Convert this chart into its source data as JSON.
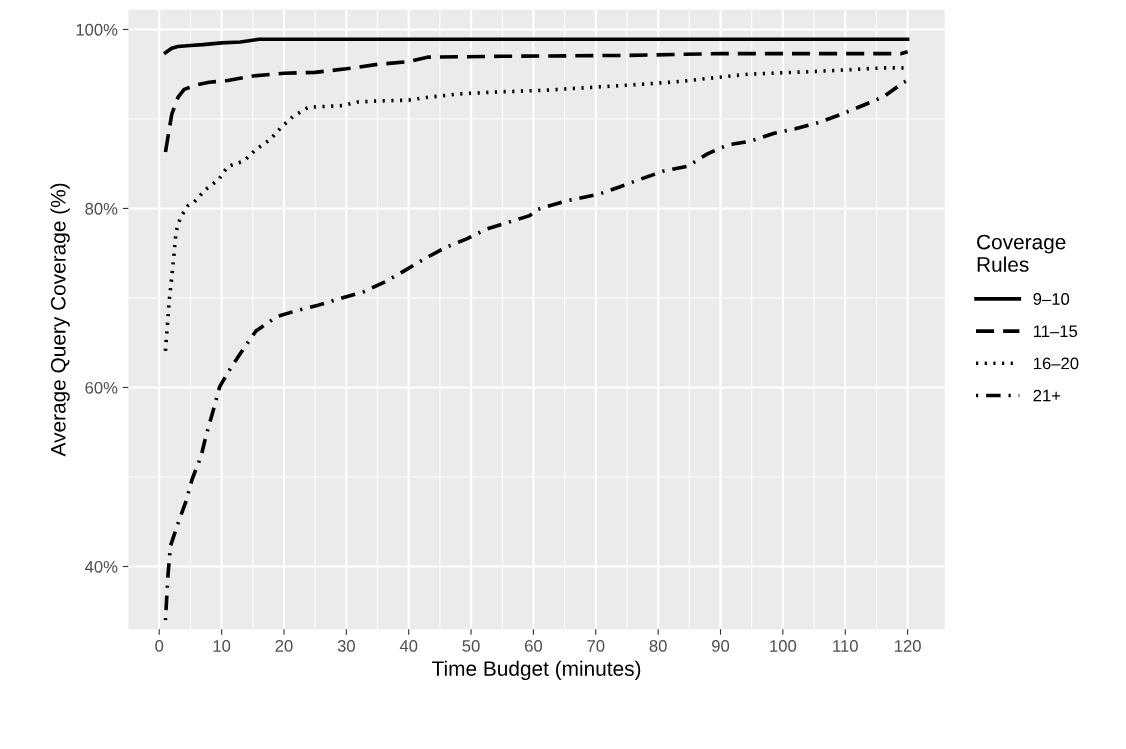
{
  "chart_data": {
    "type": "line",
    "xlabel": "Time Budget (minutes)",
    "ylabel": "Average Query Coverage (%)",
    "legend_title": "Coverage\nRules",
    "legend": "right",
    "grid": true,
    "marker": "none",
    "xlim": [
      -4.95,
      125.95
    ],
    "xticks": [
      0,
      10,
      20,
      30,
      40,
      50,
      60,
      70,
      80,
      90,
      100,
      110,
      120
    ],
    "ylim": [
      33.0,
      102.2
    ],
    "yticks": [
      {
        "value": 40,
        "label": "40%"
      },
      {
        "value": 60,
        "label": "60%"
      },
      {
        "value": 80,
        "label": "80%"
      },
      {
        "value": 100,
        "label": "100%"
      }
    ],
    "series": [
      {
        "name": "9–10",
        "color": "#000000",
        "line_style": "solid",
        "x": [
          1,
          2,
          3,
          5,
          7,
          10,
          13,
          16,
          120
        ],
        "values": [
          97.4,
          97.9,
          98.1,
          98.2,
          98.3,
          98.5,
          98.6,
          98.9,
          98.9
        ]
      },
      {
        "name": "11–15",
        "color": "#000000",
        "line_style": "dashed",
        "x": [
          1,
          2,
          3,
          4,
          6,
          8,
          11,
          15,
          20,
          25,
          30,
          35,
          40,
          43,
          55,
          75,
          90,
          119,
          120
        ],
        "values": [
          86.3,
          90.5,
          92.4,
          93.3,
          93.8,
          94.1,
          94.3,
          94.8,
          95.1,
          95.2,
          95.6,
          96.1,
          96.4,
          96.9,
          97.0,
          97.1,
          97.3,
          97.3,
          97.5
        ]
      },
      {
        "name": "16–20",
        "color": "#000000",
        "line_style": "dotted",
        "x": [
          1,
          1.6,
          2.2,
          2.7,
          3.4,
          4.6,
          5.6,
          7.4,
          9.5,
          11,
          13.6,
          15.5,
          17.8,
          19.6,
          21.5,
          23.9,
          26.6,
          29.5,
          31.9,
          34.8,
          40,
          42.8,
          48.2,
          53.7,
          61.7,
          78,
          83.7,
          89,
          94.4,
          105,
          110.7,
          116,
          120
        ],
        "values": [
          64.1,
          69.7,
          73.6,
          77.4,
          79.0,
          80.3,
          80.7,
          82.1,
          83.2,
          84.7,
          85.3,
          86.6,
          87.7,
          89.1,
          90.3,
          91.3,
          91.4,
          91.5,
          91.9,
          92.0,
          92.1,
          92.4,
          92.8,
          93.0,
          93.2,
          93.9,
          94.2,
          94.6,
          95.0,
          95.3,
          95.5,
          95.7,
          95.7
        ]
      },
      {
        "name": "21+",
        "color": "#000000",
        "line_style": "dashdot",
        "x": [
          1,
          1.4,
          1.8,
          3.0,
          4.3,
          5.3,
          6.7,
          7.5,
          8.6,
          9.7,
          11.4,
          13.5,
          15.5,
          18.8,
          22.1,
          25.5,
          29.3,
          32.8,
          36.2,
          39.7,
          42.6,
          45.8,
          49.3,
          52.5,
          56.2,
          59.4,
          60.7,
          65,
          70.5,
          73.8,
          77.3,
          81,
          84.7,
          87.9,
          91.2,
          94.7,
          98.6,
          102,
          105.8,
          109.3,
          112.8,
          116.2,
          119.4,
          120
        ],
        "values": [
          34.0,
          39.0,
          42.3,
          44.8,
          47.3,
          49.8,
          52.3,
          54.6,
          57.3,
          60.1,
          62.1,
          64.3,
          66.3,
          67.9,
          68.6,
          69.2,
          70.0,
          70.7,
          71.8,
          73.2,
          74.4,
          75.6,
          76.6,
          77.7,
          78.5,
          79.2,
          79.9,
          80.8,
          81.6,
          82.4,
          83.3,
          84.2,
          84.7,
          86.1,
          87.1,
          87.5,
          88.4,
          88.9,
          89.6,
          90.5,
          91.5,
          92.5,
          94.1,
          94.3
        ]
      }
    ]
  }
}
